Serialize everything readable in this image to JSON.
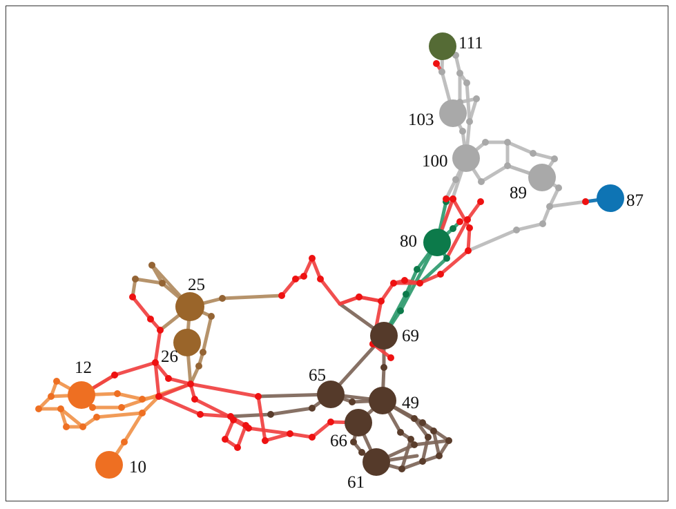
{
  "colors": {
    "red": "#f04040",
    "red_dot": "#ee1111",
    "gray": "#b8b8b8",
    "gray_node": "#a9a9a9",
    "green": "#2e9a6e",
    "green_node": "#0c7a4a",
    "dark_brown": "#7d6558",
    "dark_brown_node": "#553a2a",
    "light_brown": "#b08a5e",
    "light_brown_node": "#9a652a",
    "orange": "#f0934a",
    "orange_node": "#ee6f22",
    "olive_node": "#556b35",
    "blue_node": "#0e74b4"
  },
  "nodes": [
    {
      "id": "111",
      "label": "111",
      "group": "olive"
    },
    {
      "id": "103",
      "label": "103",
      "group": "gray"
    },
    {
      "id": "100",
      "label": "100",
      "group": "gray"
    },
    {
      "id": "89",
      "label": "89",
      "group": "gray"
    },
    {
      "id": "87",
      "label": "87",
      "group": "blue"
    },
    {
      "id": "80",
      "label": "80",
      "group": "green"
    },
    {
      "id": "25",
      "label": "25",
      "group": "light_brown"
    },
    {
      "id": "26",
      "label": "26",
      "group": "light_brown"
    },
    {
      "id": "69",
      "label": "69",
      "group": "dark_brown"
    },
    {
      "id": "12",
      "label": "12",
      "group": "orange"
    },
    {
      "id": "65",
      "label": "65",
      "group": "dark_brown"
    },
    {
      "id": "49",
      "label": "49",
      "group": "dark_brown"
    },
    {
      "id": "66",
      "label": "66",
      "group": "dark_brown"
    },
    {
      "id": "10",
      "label": "10",
      "group": "orange"
    },
    {
      "id": "61",
      "label": "61",
      "group": "dark_brown"
    }
  ]
}
